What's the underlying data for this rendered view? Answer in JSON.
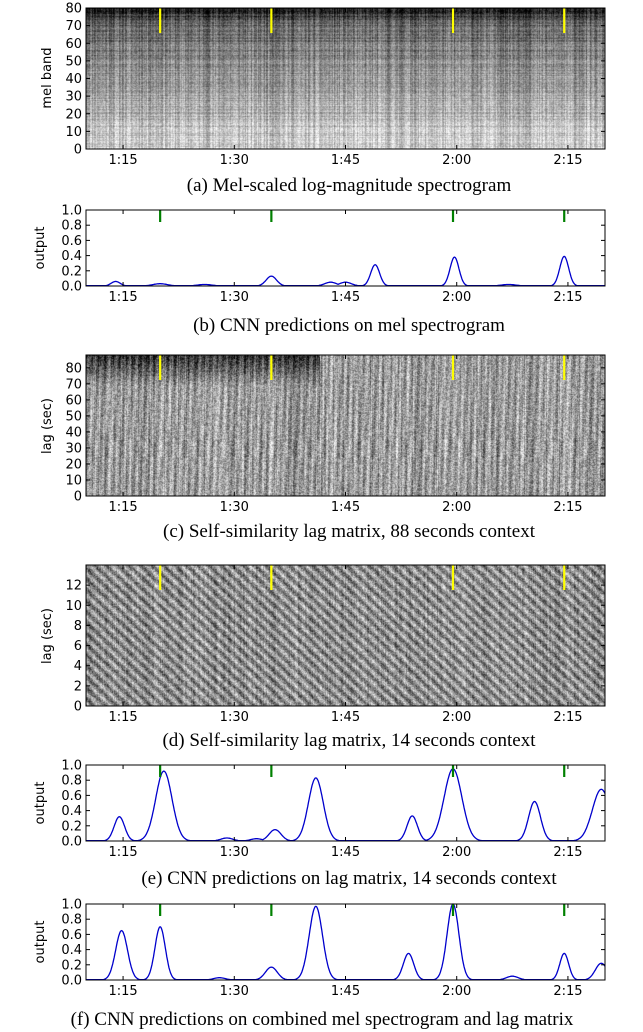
{
  "chart_data": [
    {
      "id": "a",
      "type": "heatmap",
      "caption": "(a) Mel-scaled log-magnitude spectrogram",
      "ylabel": "mel band",
      "ylim": [
        0,
        80
      ],
      "yticks": [
        "0",
        "10",
        "20",
        "30",
        "40",
        "50",
        "60",
        "70",
        "80"
      ],
      "xticks": [
        "1:15",
        "1:30",
        "1:45",
        "2:00",
        "2:15"
      ],
      "xlim_sec": [
        70,
        140
      ],
      "marker_color": "#ffff00",
      "markers_sec": [
        80,
        95,
        119.5,
        134.5
      ]
    },
    {
      "id": "b",
      "type": "line",
      "caption": "(b) CNN predictions on mel spectrogram",
      "ylabel": "output",
      "ylim": [
        0,
        1
      ],
      "yticks": [
        "0.0",
        "0.2",
        "0.4",
        "0.6",
        "0.8",
        "1.0"
      ],
      "xticks": [
        "1:15",
        "1:30",
        "1:45",
        "2:00",
        "2:15"
      ],
      "xlim_sec": [
        70,
        140
      ],
      "line_color": "#0000cc",
      "marker_color": "#008000",
      "markers_sec": [
        80,
        95,
        119.5,
        134.5
      ],
      "peaks": [
        [
          74,
          0.06,
          0.6
        ],
        [
          80,
          0.03,
          1
        ],
        [
          86,
          0.02,
          1
        ],
        [
          95,
          0.13,
          0.7
        ],
        [
          103,
          0.05,
          0.8
        ],
        [
          105,
          0.05,
          0.8
        ],
        [
          109,
          0.28,
          0.6
        ],
        [
          119.7,
          0.38,
          0.6
        ],
        [
          127,
          0.02,
          1
        ],
        [
          134.5,
          0.39,
          0.6
        ]
      ]
    },
    {
      "id": "c",
      "type": "heatmap",
      "caption": "(c) Self-similarity lag matrix, 88 seconds context",
      "ylabel": "lag (sec)",
      "ylim": [
        0,
        88
      ],
      "yticks": [
        "0",
        "10",
        "20",
        "30",
        "40",
        "50",
        "60",
        "70",
        "80"
      ],
      "xticks": [
        "1:15",
        "1:30",
        "1:45",
        "2:00",
        "2:15"
      ],
      "xlim_sec": [
        70,
        140
      ],
      "marker_color": "#ffff00",
      "markers_sec": [
        80,
        95,
        119.5,
        134.5
      ]
    },
    {
      "id": "d",
      "type": "heatmap",
      "caption": "(d) Self-similarity lag matrix, 14 seconds context",
      "ylabel": "lag (sec)",
      "ylim": [
        0,
        14
      ],
      "yticks": [
        "0",
        "2",
        "4",
        "6",
        "8",
        "10",
        "12"
      ],
      "xticks": [
        "1:15",
        "1:30",
        "1:45",
        "2:00",
        "2:15"
      ],
      "xlim_sec": [
        70,
        140
      ],
      "marker_color": "#ffff00",
      "markers_sec": [
        80,
        95,
        119.5,
        134.5
      ]
    },
    {
      "id": "e",
      "type": "line",
      "caption": "(e) CNN predictions on lag matrix, 14 seconds context",
      "ylabel": "output",
      "ylim": [
        0,
        1
      ],
      "yticks": [
        "0.0",
        "0.2",
        "0.4",
        "0.6",
        "0.8",
        "1.0"
      ],
      "xticks": [
        "1:15",
        "1:30",
        "1:45",
        "2:00",
        "2:15"
      ],
      "xlim_sec": [
        70,
        140
      ],
      "line_color": "#0000cc",
      "marker_color": "#008000",
      "markers_sec": [
        80,
        95,
        119.5,
        134.5
      ],
      "peaks": [
        [
          74.5,
          0.32,
          0.7
        ],
        [
          80.5,
          0.92,
          1.1
        ],
        [
          89,
          0.04,
          0.8
        ],
        [
          93,
          0.03,
          0.8
        ],
        [
          95.5,
          0.15,
          0.8
        ],
        [
          101,
          0.83,
          1.0
        ],
        [
          114,
          0.33,
          0.7
        ],
        [
          119.5,
          0.95,
          1.2
        ],
        [
          130.5,
          0.52,
          0.8
        ],
        [
          139.5,
          0.68,
          1.2
        ]
      ]
    },
    {
      "id": "f",
      "type": "line",
      "caption": "(f) CNN predictions on combined mel spectrogram and lag matrix",
      "ylabel": "output",
      "ylim": [
        0,
        1
      ],
      "yticks": [
        "0.0",
        "0.2",
        "0.4",
        "0.6",
        "0.8",
        "1.0"
      ],
      "xticks": [
        "1:15",
        "1:30",
        "1:45",
        "2:00",
        "2:15"
      ],
      "xlim_sec": [
        70,
        140
      ],
      "line_color": "#0000cc",
      "marker_color": "#008000",
      "markers_sec": [
        80,
        95,
        119.5,
        134.5
      ],
      "peaks": [
        [
          74.8,
          0.65,
          0.8
        ],
        [
          80,
          0.7,
          0.7
        ],
        [
          88,
          0.03,
          0.8
        ],
        [
          95,
          0.17,
          0.8
        ],
        [
          101,
          0.97,
          0.9
        ],
        [
          113.5,
          0.35,
          0.7
        ],
        [
          119.5,
          1.0,
          0.8
        ],
        [
          127.5,
          0.05,
          0.8
        ],
        [
          134.5,
          0.35,
          0.6
        ],
        [
          139.5,
          0.22,
          0.8
        ]
      ]
    }
  ]
}
